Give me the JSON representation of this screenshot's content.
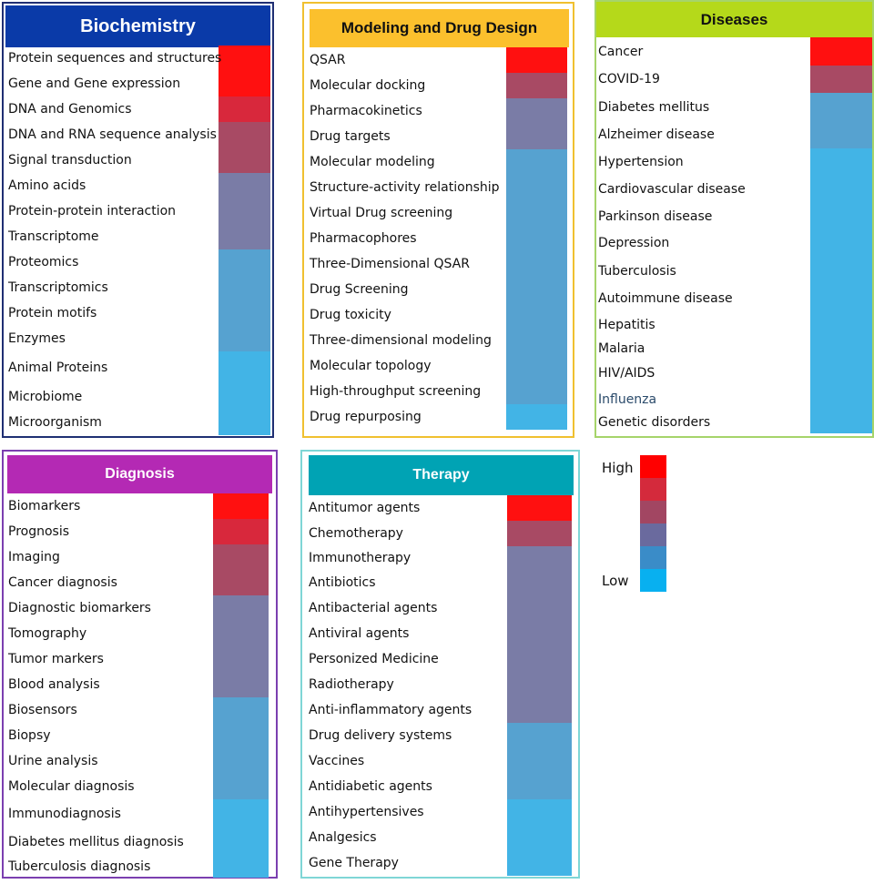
{
  "panels": [
    {
      "id": "biochemistry",
      "title": "Biochemistry",
      "colors": {
        "border": "#1f2f73",
        "header_bg": "#0a3aa8",
        "header_text": "#ffffff"
      },
      "items": [
        {
          "label": "Protein sequences and structures",
          "level": 6
        },
        {
          "label": "Gene and Gene expression",
          "level": 6
        },
        {
          "label": "DNA and Genomics",
          "level": 5
        },
        {
          "label": "DNA and RNA  sequence analysis",
          "level": 4
        },
        {
          "label": "Signal transduction",
          "level": 4
        },
        {
          "label": "Amino acids",
          "level": 3
        },
        {
          "label": "Protein-protein interaction",
          "level": 3
        },
        {
          "label": "Transcriptome",
          "level": 3
        },
        {
          "label": "Proteomics",
          "level": 2
        },
        {
          "label": "Transcriptomics",
          "level": 2
        },
        {
          "label": "Protein motifs",
          "level": 2
        },
        {
          "label": "Enzymes",
          "level": 2
        },
        {
          "label": "Animal Proteins",
          "level": 1
        },
        {
          "label": "Microbiome",
          "level": 1
        },
        {
          "label": "Microorganism",
          "level": 1
        }
      ]
    },
    {
      "id": "modeling",
      "title": "Modeling and Drug Design",
      "colors": {
        "border": "#f0c030",
        "header_bg": "#fbc02d",
        "header_text": "#111111"
      },
      "items": [
        {
          "label": "QSAR",
          "level": 6
        },
        {
          "label": "Molecular docking",
          "level": 4
        },
        {
          "label": "Pharmacokinetics",
          "level": 3
        },
        {
          "label": "Drug targets",
          "level": 3
        },
        {
          "label": "Molecular modeling",
          "level": 2
        },
        {
          "label": "Structure-activity relationship",
          "level": 2
        },
        {
          "label": "Virtual Drug screening",
          "level": 2
        },
        {
          "label": "Pharmacophores",
          "level": 2
        },
        {
          "label": "Three-Dimensional QSAR",
          "level": 2
        },
        {
          "label": "Drug Screening",
          "level": 2
        },
        {
          "label": "Drug toxicity",
          "level": 2
        },
        {
          "label": "Three-dimensional modeling",
          "level": 2
        },
        {
          "label": "Molecular topology",
          "level": 2
        },
        {
          "label": "High-throughput screening",
          "level": 2
        },
        {
          "label": "Drug repurposing",
          "level": 1
        }
      ]
    },
    {
      "id": "diseases",
      "title": "Diseases",
      "colors": {
        "border": "#a6d46a",
        "header_bg": "#b5d91a",
        "header_text": "#111111"
      },
      "items": [
        {
          "label": "Cancer",
          "level": 6
        },
        {
          "label": "COVID-19",
          "level": 4
        },
        {
          "label": "Diabetes mellitus",
          "level": 2
        },
        {
          "label": "Alzheimer disease",
          "level": 2
        },
        {
          "label": "Hypertension",
          "level": 1
        },
        {
          "label": "Cardiovascular disease",
          "level": 1
        },
        {
          "label": "Parkinson disease",
          "level": 1
        },
        {
          "label": "Depression",
          "level": 1
        },
        {
          "label": "Tuberculosis",
          "level": 1
        },
        {
          "label": "Autoimmune disease",
          "level": 1
        },
        {
          "label": "Hepatitis",
          "level": 1
        },
        {
          "label": "Malaria",
          "level": 1
        },
        {
          "label": "HIV/AIDS",
          "level": 1
        },
        {
          "label": "Influenza",
          "level": 1
        },
        {
          "label": "Genetic disorders",
          "level": 1
        }
      ]
    },
    {
      "id": "diagnosis",
      "title": "Diagnosis",
      "colors": {
        "border": "#7b3fb0",
        "header_bg": "#b429b4",
        "header_text": "#ffffff"
      },
      "items": [
        {
          "label": "Biomarkers",
          "level": 6
        },
        {
          "label": "Prognosis",
          "level": 5
        },
        {
          "label": "Imaging",
          "level": 4
        },
        {
          "label": "Cancer diagnosis",
          "level": 4
        },
        {
          "label": "Diagnostic biomarkers",
          "level": 3
        },
        {
          "label": "Tomography",
          "level": 3
        },
        {
          "label": "Tumor markers",
          "level": 3
        },
        {
          "label": "Blood analysis",
          "level": 3
        },
        {
          "label": "Biosensors",
          "level": 2
        },
        {
          "label": "Biopsy",
          "level": 2
        },
        {
          "label": "Urine analysis",
          "level": 2
        },
        {
          "label": "Molecular diagnosis",
          "level": 2
        },
        {
          "label": "Immunodiagnosis",
          "level": 1
        },
        {
          "label": "Diabetes mellitus diagnosis",
          "level": 1
        },
        {
          "label": "Tuberculosis diagnosis",
          "level": 1
        }
      ]
    },
    {
      "id": "therapy",
      "title": "Therapy",
      "colors": {
        "border": "#7fd6d6",
        "header_bg": "#00a3b4",
        "header_text": "#ffffff"
      },
      "items": [
        {
          "label": "Antitumor agents",
          "level": 6
        },
        {
          "label": "Chemotherapy",
          "level": 4
        },
        {
          "label": "Immunotherapy",
          "level": 3
        },
        {
          "label": "Antibiotics",
          "level": 3
        },
        {
          "label": "Antibacterial agents",
          "level": 3
        },
        {
          "label": "Antiviral agents",
          "level": 3
        },
        {
          "label": "Personized Medicine",
          "level": 3
        },
        {
          "label": "Radiotherapy",
          "level": 3
        },
        {
          "label": "Anti-inflammatory agents",
          "level": 3
        },
        {
          "label": "Drug delivery systems",
          "level": 2
        },
        {
          "label": "Vaccines",
          "level": 2
        },
        {
          "label": "Antidiabetic agents",
          "level": 2
        },
        {
          "label": "Antihypertensives",
          "level": 1
        },
        {
          "label": "Analgesics",
          "level": 1
        },
        {
          "label": "Gene Therapy",
          "level": 1
        }
      ]
    }
  ],
  "legend": {
    "high_label": "High",
    "low_label": "Low",
    "levels": [
      6,
      5,
      4,
      3,
      2,
      1
    ]
  },
  "level_colors": {
    "6": "#ff1010",
    "5": "#d8283c",
    "4": "#a84a64",
    "3": "#7a7ca6",
    "2": "#56a2d0",
    "1": "#42b4e6"
  },
  "legend_colors": [
    "#ff0000",
    "#d42a3c",
    "#a24662",
    "#6a6a9e",
    "#3a8cc8",
    "#08b0f0"
  ]
}
